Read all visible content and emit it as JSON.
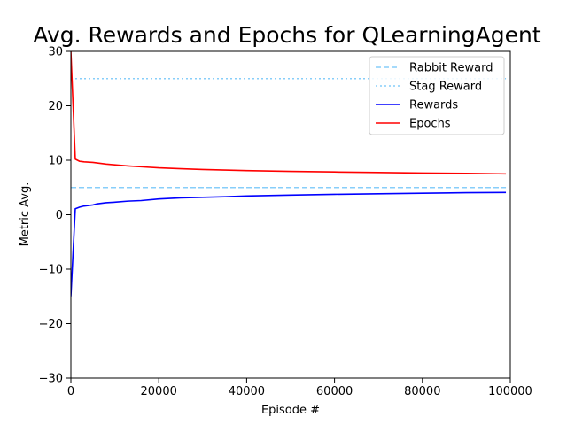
{
  "chart_data": {
    "type": "line",
    "title": "Avg. Rewards and Epochs for QLearningAgent",
    "xlabel": "Episode #",
    "ylabel": "Metric Avg.",
    "xlim": [
      0,
      100000
    ],
    "ylim": [
      -30,
      30
    ],
    "xticks": [
      0,
      20000,
      40000,
      60000,
      80000,
      100000
    ],
    "xtick_labels": [
      "0",
      "20000",
      "40000",
      "60000",
      "80000",
      "100000"
    ],
    "yticks": [
      -30,
      -20,
      -10,
      0,
      10,
      20,
      30
    ],
    "ytick_labels": [
      "−30",
      "−20",
      "−10",
      "0",
      "10",
      "20",
      "30"
    ],
    "grid": false,
    "legend_position": "top-right",
    "series": [
      {
        "name": "Rabbit Reward",
        "style": "dashed",
        "color": "#87CEFA",
        "x": [
          0,
          99000
        ],
        "y": [
          5,
          5
        ]
      },
      {
        "name": "Stag Reward",
        "style": "dotted",
        "color": "#87CEFA",
        "x": [
          0,
          99000
        ],
        "y": [
          25,
          25
        ]
      },
      {
        "name": "Rewards",
        "style": "solid",
        "color": "#0000FF",
        "x": [
          0,
          1000,
          2000,
          3000,
          5000,
          6000,
          8000,
          10000,
          13000,
          16000,
          20000,
          25000,
          30000,
          35000,
          40000,
          50000,
          60000,
          70000,
          80000,
          90000,
          99000
        ],
        "y": [
          -15,
          1.1,
          1.4,
          1.6,
          1.8,
          2.0,
          2.2,
          2.3,
          2.5,
          2.6,
          2.9,
          3.1,
          3.2,
          3.3,
          3.45,
          3.6,
          3.75,
          3.85,
          3.95,
          4.05,
          4.1
        ]
      },
      {
        "name": "Epochs",
        "style": "solid",
        "color": "#FF0000",
        "x": [
          0,
          1000,
          2000,
          3000,
          5000,
          6000,
          8000,
          10000,
          13000,
          16000,
          20000,
          25000,
          30000,
          35000,
          40000,
          50000,
          60000,
          70000,
          80000,
          90000,
          99000
        ],
        "y": [
          30,
          10.2,
          9.8,
          9.7,
          9.6,
          9.5,
          9.3,
          9.15,
          8.95,
          8.8,
          8.6,
          8.45,
          8.3,
          8.2,
          8.1,
          7.95,
          7.85,
          7.75,
          7.65,
          7.6,
          7.5
        ]
      }
    ]
  }
}
